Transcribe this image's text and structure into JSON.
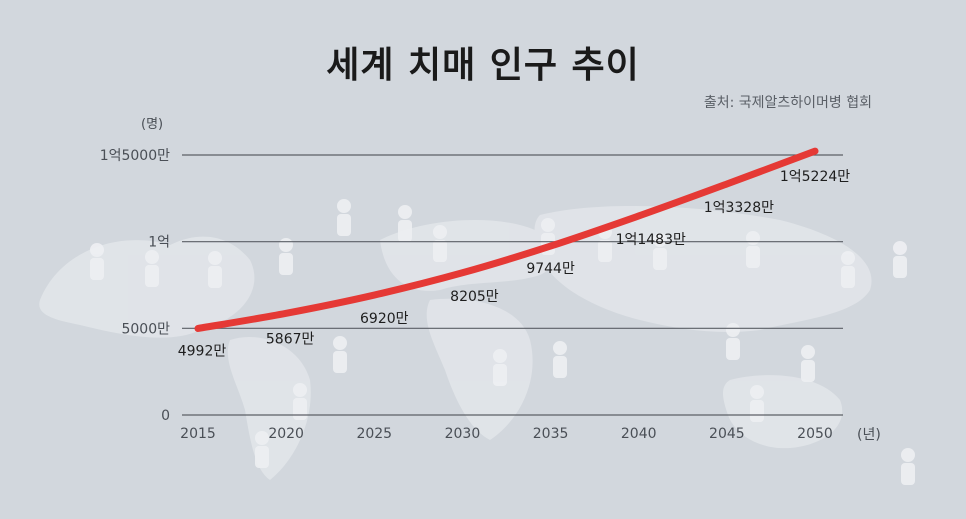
{
  "title": "세계 치매 인구 추이",
  "source": "출처: 국제알츠하이머병 협회",
  "colors": {
    "line": "#e53935",
    "gridline": "#5b5f66",
    "axis_text": "#4a4f56",
    "label_text": "#1e1e1e",
    "background": "#d2d7dd",
    "map": "#e4e7eb"
  },
  "chart_data": {
    "type": "line",
    "title": "세계 치매 인구 추이",
    "ylabel": "(명)",
    "xlabel": "(년)",
    "x": [
      2015,
      2020,
      2025,
      2030,
      2035,
      2040,
      2045,
      2050
    ],
    "values": [
      49920000,
      58670000,
      69200000,
      82050000,
      97440000,
      114830000,
      133280000,
      152240000
    ],
    "data_labels": [
      "4992만",
      "5867만",
      "6920만",
      "8205만",
      "9744만",
      "1억1483만",
      "1억3328만",
      "1억5224만"
    ],
    "yticks": [
      0,
      50000000,
      100000000,
      150000000
    ],
    "ytick_labels": [
      "0",
      "5000만",
      "1억",
      "1억5000만"
    ],
    "xtick_labels": [
      "2015",
      "2020",
      "2025",
      "2030",
      "2035",
      "2040",
      "2045",
      "2050"
    ],
    "ylim": [
      0,
      150000000
    ],
    "grid": true,
    "legend": "none"
  }
}
